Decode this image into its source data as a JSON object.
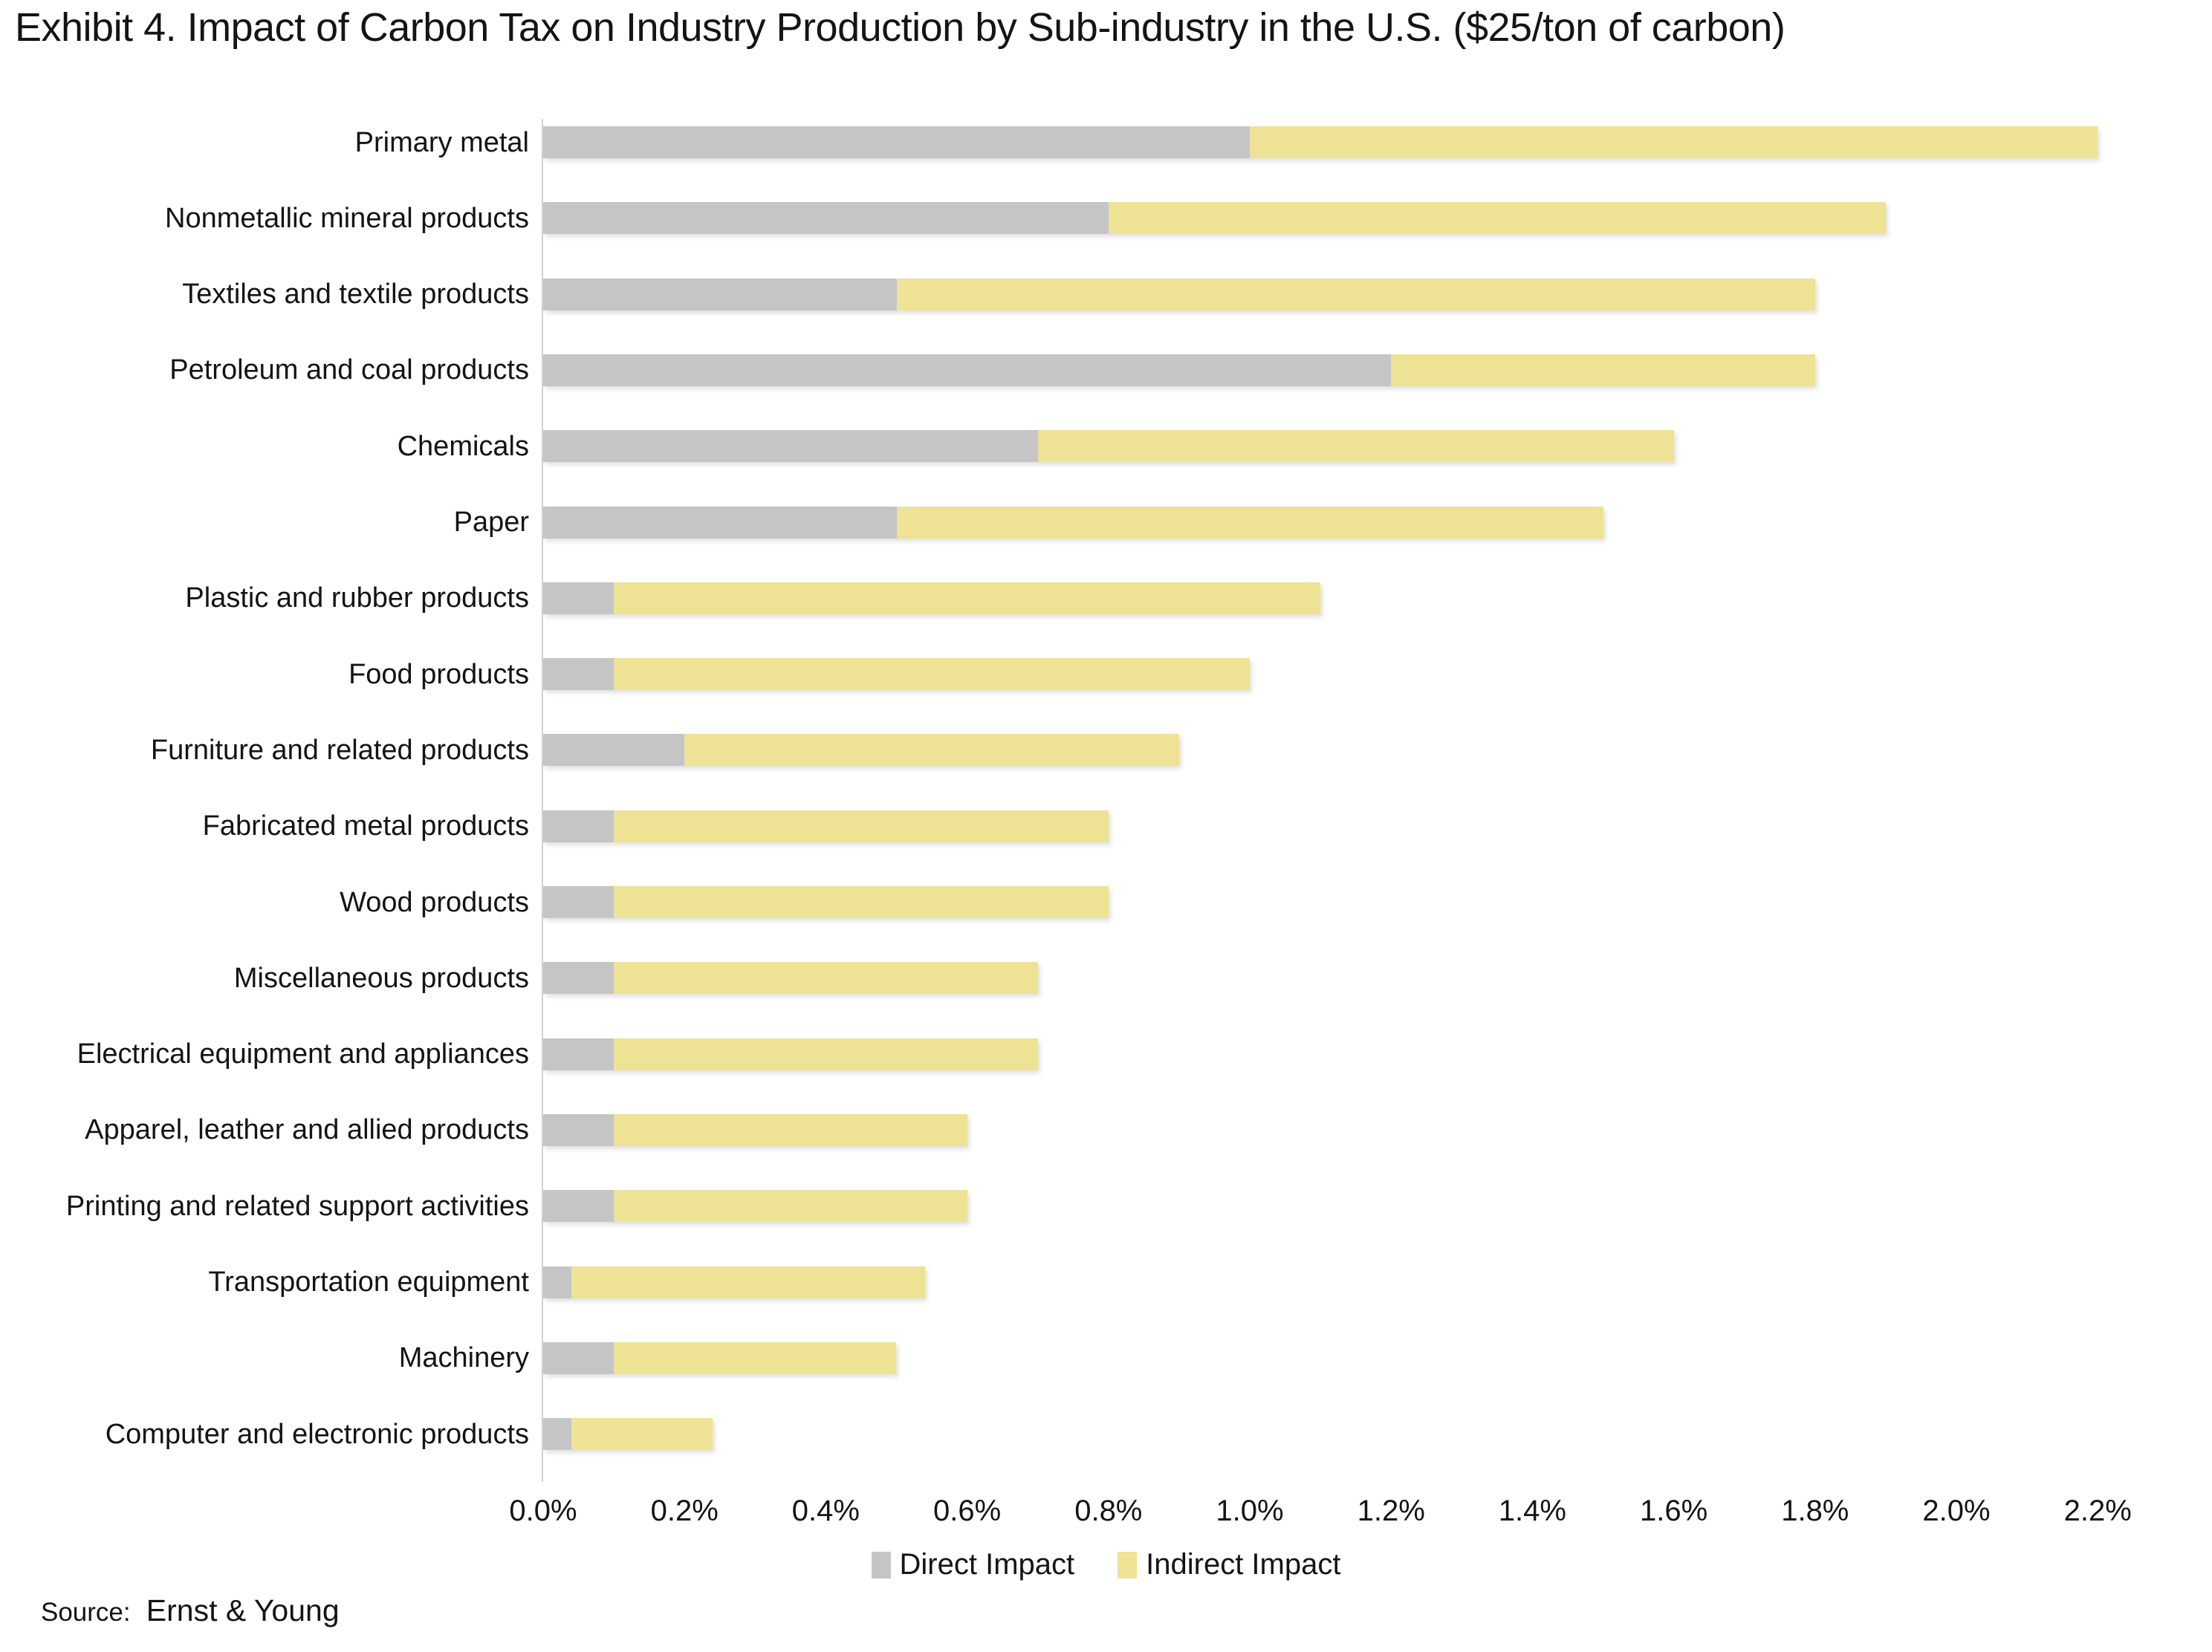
{
  "title": "Exhibit 4. Impact of Carbon Tax on Industry Production by Sub-industry in the U.S. ($25/ton of carbon)",
  "source": {
    "prefix": "Source:",
    "name": "Ernst & Young"
  },
  "chart_data": {
    "type": "bar",
    "orientation": "horizontal",
    "stacked": true,
    "title": "Exhibit 4. Impact of Carbon Tax on Industry Production by Sub-industry in the U.S. ($25/ton of carbon)",
    "categories": [
      "Primary metal",
      "Nonmetallic mineral products",
      "Textiles and textile products",
      "Petroleum and coal products",
      "Chemicals",
      "Paper",
      "Plastic and rubber products",
      "Food products",
      "Furniture and related products",
      "Fabricated metal products",
      "Wood products",
      "Miscellaneous products",
      "Electrical equipment and appliances",
      "Apparel, leather and allied products",
      "Printing and related support activities",
      "Transportation equipment",
      "Machinery",
      "Computer and electronic products"
    ],
    "series": [
      {
        "name": "Direct Impact",
        "color": "#C5C5C5",
        "values": [
          1.0,
          0.8,
          0.5,
          1.2,
          0.7,
          0.5,
          0.1,
          0.1,
          0.2,
          0.1,
          0.1,
          0.1,
          0.1,
          0.1,
          0.1,
          0.04,
          0.1,
          0.04
        ]
      },
      {
        "name": "Indirect Impact",
        "color": "#EEE294",
        "values": [
          1.2,
          1.1,
          1.3,
          0.6,
          0.9,
          1.0,
          1.0,
          0.9,
          0.7,
          0.7,
          0.7,
          0.6,
          0.6,
          0.5,
          0.5,
          0.5,
          0.4,
          0.2
        ]
      }
    ],
    "totals_pct": [
      2.2,
      1.9,
      1.8,
      1.8,
      1.6,
      1.5,
      1.1,
      1.0,
      0.9,
      0.8,
      0.8,
      0.7,
      0.7,
      0.6,
      0.6,
      0.54,
      0.5,
      0.24
    ],
    "xlabel": "",
    "ylabel": "",
    "xlim": [
      0,
      2.2
    ],
    "x_tick_labels": [
      "0.0%",
      "0.2%",
      "0.4%",
      "0.6%",
      "0.8%",
      "1.0%",
      "1.2%",
      "1.4%",
      "1.6%",
      "1.8%",
      "2.0%",
      "2.2%"
    ],
    "grid": false,
    "legend_position": "bottom",
    "axis_line_color": "#D2D2D2"
  }
}
